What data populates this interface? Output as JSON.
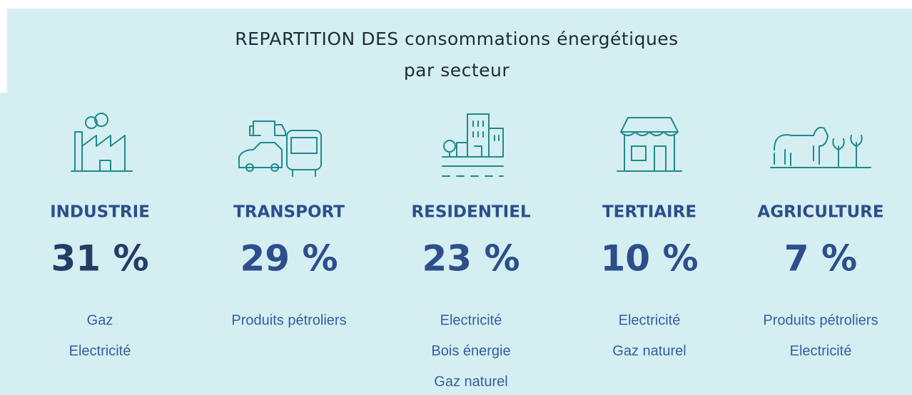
{
  "title": {
    "lines": [
      "REPARTITION DES consommations énergétiques",
      "par secteur"
    ]
  },
  "sectors": [
    {
      "name": "INDUSTRIE",
      "share": "31 %",
      "sources": [
        "Gaz",
        "Electricité"
      ]
    },
    {
      "name": "TRANSPORT",
      "share": "29 %",
      "sources": [
        "Produits pétroliers"
      ]
    },
    {
      "name": "RESIDENTIEL",
      "share": "23 %",
      "sources": [
        "Electricité",
        "Bois énergie",
        "Gaz naturel"
      ]
    },
    {
      "name": "TERTIAIRE",
      "share": "10 %",
      "sources": [
        "Electricité",
        "Gaz naturel"
      ]
    },
    {
      "name": "AGRICULTURE",
      "share": "7 %",
      "sources": [
        "Produits pétroliers",
        "Electricité"
      ]
    }
  ]
}
